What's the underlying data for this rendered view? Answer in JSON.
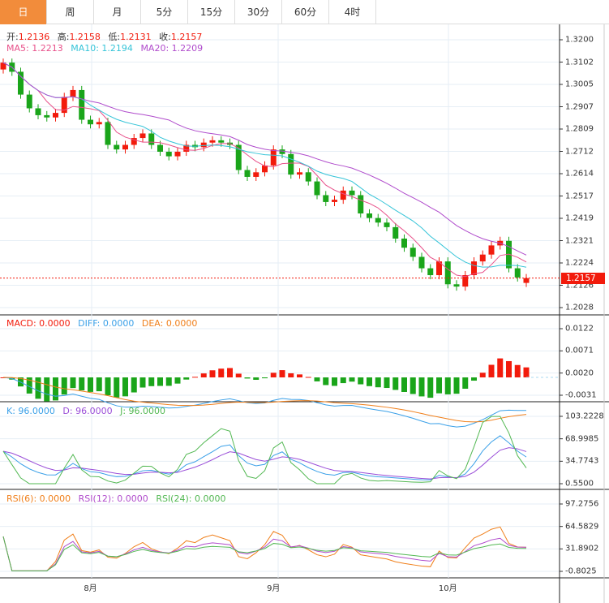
{
  "tabs": [
    "日",
    "周",
    "月",
    "5分",
    "15分",
    "30分",
    "60分",
    "4时"
  ],
  "active_tab": 0,
  "ohlc_legend": {
    "open_label": "开:",
    "open": "1.2136",
    "high_label": "高:",
    "high": "1.2158",
    "low_label": "低:",
    "low": "1.2131",
    "close_label": "收:",
    "close": "1.2157"
  },
  "ma_legend": {
    "ma5": "MA5: 1.2213",
    "ma10": "MA10: 1.2194",
    "ma20": "MA20: 1.2209"
  },
  "macd_legend": {
    "macd": "MACD: 0.0000",
    "diff": "DIFF: 0.0000",
    "dea": "DEA: 0.0000"
  },
  "kdj_legend": {
    "k": "K: 96.0000",
    "d": "D: 96.0000",
    "j": "J: 96.0000"
  },
  "rsi_legend": {
    "rsi6": "RSI(6): 0.0000",
    "rsi12": "RSI(12): 0.0000",
    "rsi24": "RSI(24): 0.0000"
  },
  "current_price": "1.2157",
  "colors": {
    "up": "#f21b0c",
    "down": "#1aa51a",
    "ma5": "#e8508a",
    "ma10": "#35c4d8",
    "ma20": "#b04ccc",
    "dif": "#3aa0e8",
    "dea": "#f07f1a",
    "k": "#3aa0e8",
    "d": "#9a4ed8",
    "j": "#52b852",
    "rsi6": "#f07f1a",
    "rsi12": "#b04ccc",
    "rsi24": "#52b852",
    "accent": "#f28c3b"
  },
  "chart_data": {
    "type": "candlestick",
    "open": [
      1.307,
      1.31,
      1.306,
      1.296,
      1.29,
      1.287,
      1.286,
      1.288,
      1.295,
      1.298,
      1.285,
      1.283,
      1.284,
      1.274,
      1.272,
      1.274,
      1.277,
      1.279,
      1.274,
      1.271,
      1.269,
      1.271,
      1.274,
      1.273,
      1.275,
      1.276,
      1.275,
      1.274,
      1.263,
      1.26,
      1.262,
      1.265,
      1.272,
      1.27,
      1.261,
      1.262,
      1.258,
      1.252,
      1.249,
      1.25,
      1.254,
      1.252,
      1.244,
      1.242,
      1.24,
      1.238,
      1.233,
      1.229,
      1.225,
      1.22,
      1.217,
      1.223,
      1.213,
      1.212,
      1.217,
      1.223,
      1.226,
      1.23,
      1.232,
      1.22,
      1.2136
    ],
    "close": [
      1.31,
      1.306,
      1.296,
      1.29,
      1.287,
      1.286,
      1.288,
      1.295,
      1.298,
      1.285,
      1.283,
      1.284,
      1.274,
      1.272,
      1.274,
      1.277,
      1.279,
      1.274,
      1.271,
      1.269,
      1.271,
      1.274,
      1.273,
      1.275,
      1.276,
      1.275,
      1.274,
      1.263,
      1.26,
      1.262,
      1.265,
      1.272,
      1.27,
      1.261,
      1.262,
      1.258,
      1.252,
      1.249,
      1.25,
      1.254,
      1.252,
      1.244,
      1.242,
      1.24,
      1.238,
      1.233,
      1.229,
      1.225,
      1.22,
      1.217,
      1.223,
      1.213,
      1.212,
      1.217,
      1.223,
      1.226,
      1.23,
      1.232,
      1.22,
      1.216,
      1.2157
    ],
    "price_ticks": [
      "1.3200",
      "1.3102",
      "1.3005",
      "1.2907",
      "1.2809",
      "1.2712",
      "1.2614",
      "1.2517",
      "1.2419",
      "1.2321",
      "1.2224",
      "1.2126",
      "1.2028"
    ],
    "price_range": [
      1.2028,
      1.32
    ],
    "macd_ticks": [
      "0.0122",
      "0.0071",
      "0.0020",
      "-0.0031"
    ],
    "macd_range": [
      -0.0031,
      0.0122
    ],
    "kdj_ticks": [
      "103.2228",
      "68.9985",
      "34.7743",
      "0.5500"
    ],
    "kdj_range": [
      0.55,
      103.2228
    ],
    "rsi_ticks": [
      "97.2756",
      "64.5829",
      "31.8902",
      "-0.8025"
    ],
    "rsi_range": [
      -0.8025,
      97.2756
    ],
    "x_labels": [
      {
        "label": "8月",
        "index": 10
      },
      {
        "label": "9月",
        "index": 31
      },
      {
        "label": "10月",
        "index": 51
      }
    ]
  }
}
